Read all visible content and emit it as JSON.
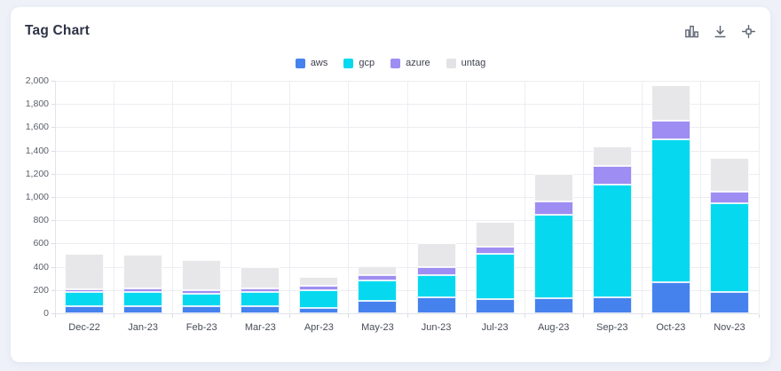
{
  "header": {
    "title": "Tag Chart",
    "actions": [
      {
        "name": "bar-chart-icon",
        "label": "chart type"
      },
      {
        "name": "download-icon",
        "label": "download"
      },
      {
        "name": "compress-icon",
        "label": "collapse"
      }
    ]
  },
  "colors": {
    "page_background": "#eef1f8",
    "card_background": "#ffffff",
    "title_text": "#2e3446",
    "axis_text": "#5b5f69",
    "gridline": "#ededf2",
    "icon": "#5d6673"
  },
  "chart_data": {
    "type": "bar",
    "stacked": true,
    "title": "Tag Chart",
    "xlabel": "",
    "ylabel": "",
    "ylim": [
      0,
      2000
    ],
    "ytick_step": 200,
    "grid": true,
    "legend_position": "top-center",
    "categories": [
      "Dec-22",
      "Jan-23",
      "Feb-23",
      "Mar-23",
      "Apr-23",
      "May-23",
      "Jun-23",
      "Jul-23",
      "Aug-23",
      "Sep-23",
      "Oct-23",
      "Nov-23"
    ],
    "series": [
      {
        "name": "aws",
        "color": "#4682ee",
        "values": [
          60,
          65,
          60,
          60,
          45,
          110,
          135,
          125,
          130,
          135,
          270,
          180
        ]
      },
      {
        "name": "gcp",
        "color": "#06d9ef",
        "values": [
          120,
          115,
          105,
          125,
          155,
          175,
          195,
          385,
          715,
          970,
          1230,
          765
        ]
      },
      {
        "name": "azure",
        "color": "#9e8df2",
        "values": [
          30,
          35,
          30,
          30,
          35,
          40,
          70,
          60,
          120,
          160,
          160,
          100
        ]
      },
      {
        "name": "untag",
        "color": "#e7e7e9",
        "values": [
          300,
          290,
          260,
          185,
          80,
          80,
          200,
          220,
          235,
          170,
          300,
          290
        ]
      }
    ],
    "totals": [
      510,
      505,
      455,
      400,
      315,
      405,
      600,
      790,
      1200,
      1435,
      1960,
      1335
    ]
  }
}
